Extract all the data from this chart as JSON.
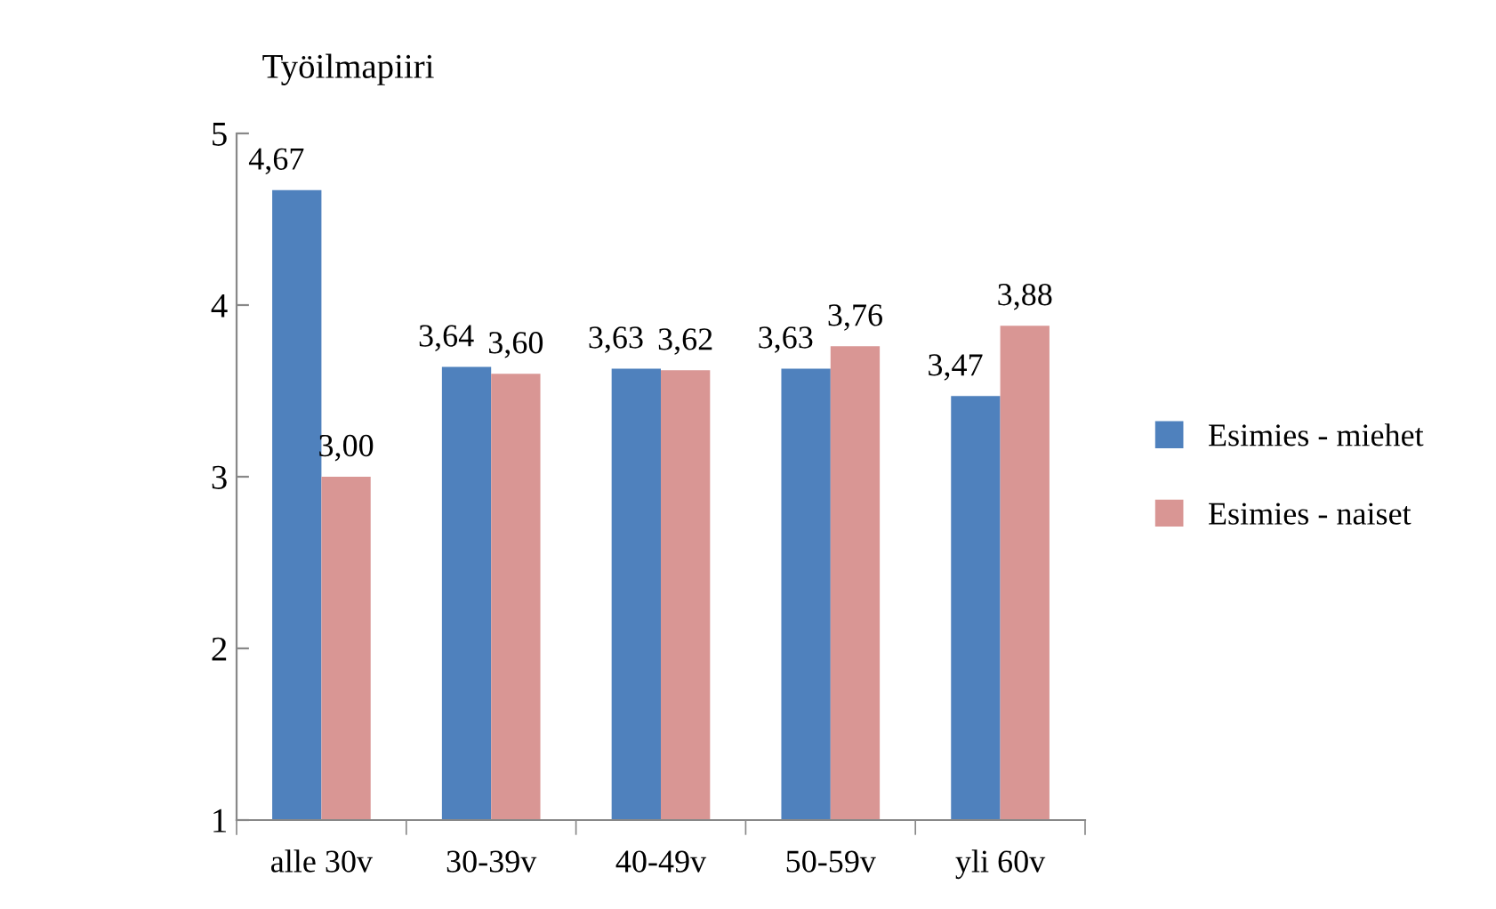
{
  "chart_data": {
    "type": "bar",
    "title": "Työilmapiiri",
    "categories": [
      "alle 30v",
      "30-39v",
      "40-49v",
      "50-59v",
      "yli 60v"
    ],
    "series": [
      {
        "name": "Esimies - miehet",
        "color": "#4f81bd",
        "values": [
          4.67,
          3.64,
          3.63,
          3.63,
          3.47
        ],
        "value_labels": [
          "4,67",
          "3,64",
          "3,63",
          "3,63",
          "3,47"
        ]
      },
      {
        "name": "Esimies - naiset",
        "color": "#d99694",
        "values": [
          3.0,
          3.6,
          3.62,
          3.76,
          3.88
        ],
        "value_labels": [
          "3,00",
          "3,60",
          "3,62",
          "3,76",
          "3,88"
        ]
      }
    ],
    "ylim": [
      1,
      5
    ],
    "yticks": [
      1,
      2,
      3,
      4,
      5
    ],
    "grid": false,
    "legend": "right"
  }
}
